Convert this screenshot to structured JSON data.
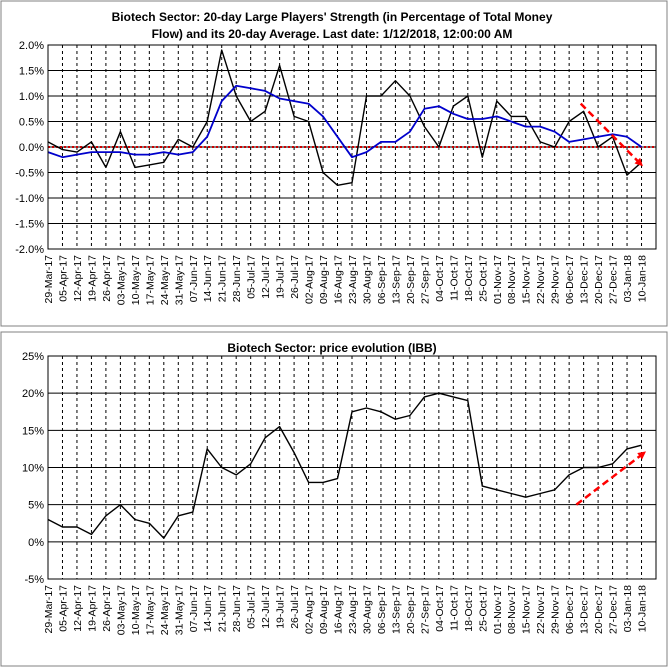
{
  "colors": {
    "strength_line": "#000000",
    "average_line": "#0000CC",
    "zero_line": "#CC0000",
    "trend_arrow": "#FF0000",
    "grid": "#000000",
    "panel_border": "#808080"
  },
  "chart_data": [
    {
      "type": "line",
      "title_line1": "Biotech Sector: 20-day Large Players' Strength (in Percentage of Total Money",
      "title_line2": "Flow) and its 20-day Average. Last date: 1/12/2018, 12:00:00 AM",
      "xlabel": "",
      "ylabel": "",
      "ylim": [
        -2.0,
        2.0
      ],
      "y_ticks": [
        "2.0%",
        "1.5%",
        "1.0%",
        "0.5%",
        "0.0%",
        "-0.5%",
        "-1.0%",
        "-1.5%",
        "-2.0%"
      ],
      "x_ticks": [
        "29-Mar-17",
        "05-Apr-17",
        "12-Apr-17",
        "19-Apr-17",
        "26-Apr-17",
        "03-May-17",
        "10-May-17",
        "17-May-17",
        "24-May-17",
        "31-May-17",
        "07-Jun-17",
        "14-Jun-17",
        "21-Jun-17",
        "28-Jun-17",
        "05-Jul-17",
        "12-Jul-17",
        "19-Jul-17",
        "26-Jul-17",
        "02-Aug-17",
        "09-Aug-17",
        "16-Aug-17",
        "23-Aug-17",
        "30-Aug-17",
        "06-Sep-17",
        "13-Sep-17",
        "20-Sep-17",
        "27-Sep-17",
        "04-Oct-17",
        "11-Oct-17",
        "18-Oct-17",
        "25-Oct-17",
        "01-Nov-17",
        "08-Nov-17",
        "15-Nov-17",
        "22-Nov-17",
        "29-Nov-17",
        "06-Dec-17",
        "13-Dec-17",
        "20-Dec-17",
        "27-Dec-17",
        "03-Jan-18",
        "10-Jan-18"
      ],
      "grid": "horizontal solid, vertical dashed",
      "series": [
        {
          "name": "",
          "role": "strength",
          "x": [
            0,
            1,
            2,
            3,
            4,
            5,
            6,
            7,
            8,
            9,
            10,
            11,
            12,
            13,
            14,
            15,
            16,
            17,
            18,
            19,
            20,
            21,
            22,
            23,
            24,
            25,
            26,
            27,
            28,
            29,
            30,
            31,
            32,
            33,
            34,
            35,
            36,
            37,
            38,
            39,
            40,
            41
          ],
          "values": [
            0.1,
            -0.05,
            -0.1,
            0.1,
            -0.4,
            0.3,
            -0.4,
            -0.35,
            -0.3,
            0.15,
            0.0,
            0.5,
            1.9,
            1.0,
            0.5,
            0.7,
            1.6,
            0.6,
            0.5,
            -0.5,
            -0.75,
            -0.7,
            1.0,
            1.0,
            1.3,
            1.0,
            0.4,
            0.0,
            0.8,
            1.0,
            -0.2,
            0.9,
            0.6,
            0.6,
            0.1,
            0.0,
            0.5,
            0.7,
            0.0,
            0.2,
            -0.55,
            -0.3
          ]
        },
        {
          "name": "",
          "role": "20-day average",
          "x": [
            0,
            1,
            2,
            3,
            4,
            5,
            6,
            7,
            8,
            9,
            10,
            11,
            12,
            13,
            14,
            15,
            16,
            17,
            18,
            19,
            20,
            21,
            22,
            23,
            24,
            25,
            26,
            27,
            28,
            29,
            30,
            31,
            32,
            33,
            34,
            35,
            36,
            37,
            38,
            39,
            40,
            41
          ],
          "values": [
            -0.1,
            -0.2,
            -0.15,
            -0.1,
            -0.1,
            -0.1,
            -0.15,
            -0.15,
            -0.1,
            -0.15,
            -0.1,
            0.2,
            0.9,
            1.2,
            1.15,
            1.1,
            0.95,
            0.9,
            0.85,
            0.6,
            0.2,
            -0.2,
            -0.1,
            0.1,
            0.1,
            0.3,
            0.75,
            0.8,
            0.65,
            0.55,
            0.55,
            0.6,
            0.5,
            0.4,
            0.4,
            0.3,
            0.1,
            0.15,
            0.2,
            0.25,
            0.2,
            0.0
          ]
        }
      ],
      "zero_line": 0.0,
      "trend_arrow": {
        "from": [
          36.8,
          0.85
        ],
        "to": [
          41,
          -0.35
        ]
      }
    },
    {
      "type": "line",
      "title": "Biotech Sector: price evolution (IBB)",
      "xlabel": "",
      "ylabel": "",
      "ylim": [
        -5,
        25
      ],
      "y_ticks": [
        "25%",
        "20%",
        "15%",
        "10%",
        "5%",
        "0%",
        "-5%"
      ],
      "x_ticks": [
        "29-Mar-17",
        "05-Apr-17",
        "12-Apr-17",
        "19-Apr-17",
        "26-Apr-17",
        "03-May-17",
        "10-May-17",
        "17-May-17",
        "24-May-17",
        "31-May-17",
        "07-Jun-17",
        "14-Jun-17",
        "21-Jun-17",
        "28-Jun-17",
        "05-Jul-17",
        "12-Jul-17",
        "19-Jul-17",
        "26-Jul-17",
        "02-Aug-17",
        "09-Aug-17",
        "16-Aug-17",
        "23-Aug-17",
        "30-Aug-17",
        "06-Sep-17",
        "13-Sep-17",
        "20-Sep-17",
        "27-Sep-17",
        "04-Oct-17",
        "11-Oct-17",
        "18-Oct-17",
        "25-Oct-17",
        "01-Nov-17",
        "08-Nov-17",
        "15-Nov-17",
        "22-Nov-17",
        "29-Nov-17",
        "06-Dec-17",
        "13-Dec-17",
        "20-Dec-17",
        "27-Dec-17",
        "03-Jan-18",
        "10-Jan-18"
      ],
      "grid": "horizontal solid, vertical dashed",
      "series": [
        {
          "name": "",
          "role": "price",
          "x": [
            0,
            1,
            2,
            3,
            4,
            5,
            6,
            7,
            8,
            9,
            10,
            11,
            12,
            13,
            14,
            15,
            16,
            17,
            18,
            19,
            20,
            21,
            22,
            23,
            24,
            25,
            26,
            27,
            28,
            29,
            30,
            31,
            32,
            33,
            34,
            35,
            36,
            37,
            38,
            39,
            40,
            41
          ],
          "values": [
            3.0,
            2.0,
            2.0,
            1.0,
            3.5,
            5.0,
            3.0,
            2.5,
            0.5,
            3.5,
            4.0,
            12.5,
            10.0,
            9.0,
            10.5,
            14.0,
            15.5,
            12.0,
            8.0,
            8.0,
            8.5,
            17.5,
            18.0,
            17.5,
            16.5,
            17.0,
            19.5,
            20.0,
            19.5,
            19.0,
            7.5,
            7.0,
            6.5,
            6.0,
            6.5,
            7.0,
            9.0,
            10.0,
            10.0,
            10.5,
            12.5,
            13.0
          ]
        }
      ],
      "trend_arrow": {
        "from": [
          36.5,
          5.0
        ],
        "to": [
          41.2,
          12.0
        ]
      }
    }
  ]
}
